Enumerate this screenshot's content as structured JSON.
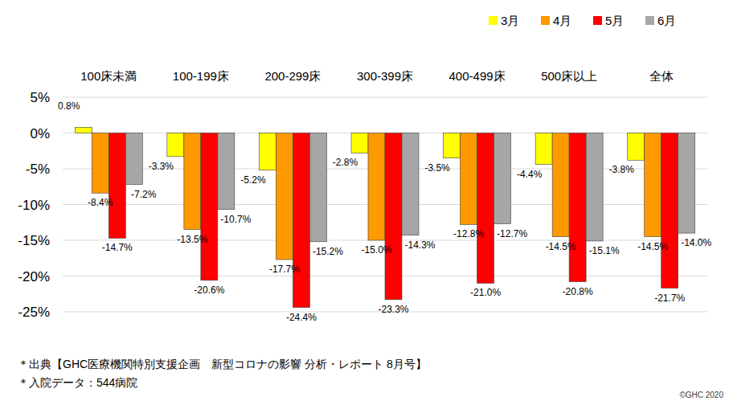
{
  "chart_data": {
    "type": "bar",
    "categories": [
      "100床未満",
      "100-199床",
      "200-299床",
      "300-399床",
      "400-499床",
      "500床以上",
      "全体"
    ],
    "series": [
      {
        "name": "3月",
        "color": "#ffff00",
        "values": [
          0.8,
          -3.3,
          -5.2,
          -2.8,
          -3.5,
          -4.4,
          -3.8
        ],
        "value_labels": [
          "0.8%",
          "-3.3%",
          "-5.2%",
          "-2.8%",
          "-3.5%",
          "-4.4%",
          "-3.8%"
        ]
      },
      {
        "name": "4月",
        "color": "#ff9900",
        "values": [
          -8.4,
          -13.5,
          -17.7,
          -15.0,
          -12.8,
          -14.5,
          -14.5
        ],
        "value_labels": [
          "-8.4%",
          "-13.5%",
          "-17.7%",
          "-15.0%",
          "-12.8%",
          "-14.5%",
          "-14.5%"
        ]
      },
      {
        "name": "5月",
        "color": "#ff0000",
        "values": [
          -14.7,
          -20.6,
          -24.4,
          -23.3,
          -21.0,
          -20.8,
          -21.7
        ],
        "value_labels": [
          "-14.7%",
          "-20.6%",
          "-24.4%",
          "-23.3%",
          "-21.0%",
          "-20.8%",
          "-21.7%"
        ]
      },
      {
        "name": "6月",
        "color": "#a6a6a6",
        "values": [
          -7.2,
          -10.7,
          -15.2,
          -14.3,
          -12.7,
          -15.1,
          -14.0
        ],
        "value_labels": [
          "-7.2%",
          "-10.7%",
          "-15.2%",
          "-14.3%",
          "-12.7%",
          "-15.1%",
          "-14.0%"
        ]
      }
    ],
    "ylim": [
      -25,
      5
    ],
    "yticks": [
      {
        "value": 5,
        "label": "5%"
      },
      {
        "value": 0,
        "label": "0%"
      },
      {
        "value": -5,
        "label": "-5%"
      },
      {
        "value": -10,
        "label": "-10%"
      },
      {
        "value": -15,
        "label": "-15%"
      },
      {
        "value": -20,
        "label": "-20%"
      },
      {
        "value": -25,
        "label": "-25%"
      }
    ],
    "grid": true,
    "legend": "top-right",
    "data_labels": true,
    "annotations": [
      "＊出典【GHC医療機関特別支援企画　新型コロナの影響 分析・レポート 8月号】",
      "＊入院データ：544病院",
      "©GHC 2020"
    ]
  }
}
